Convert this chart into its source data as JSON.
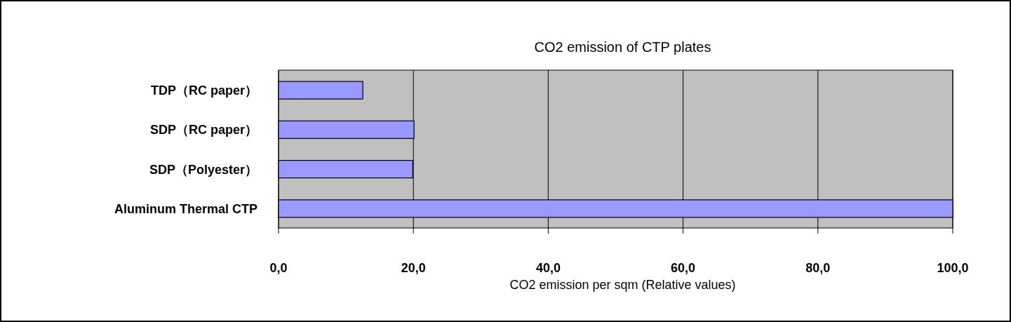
{
  "chart_data": {
    "type": "bar",
    "orientation": "horizontal",
    "title": "CO2 emission of CTP plates",
    "xlabel": "CO2 emission per sqm (Relative values)",
    "categories": [
      "TDP（RC paper）",
      "SDP（RC paper）",
      "SDP（Polyester）",
      "Aluminum Thermal CTP"
    ],
    "values": [
      12.5,
      20.1,
      19.9,
      100
    ],
    "color": "#9999ff",
    "xlim": [
      0,
      100
    ],
    "xticks": [
      {
        "value": 0,
        "label": "0,0"
      },
      {
        "value": 20,
        "label": "20,0"
      },
      {
        "value": 40,
        "label": "40,0"
      },
      {
        "value": 60,
        "label": "60,0"
      },
      {
        "value": 80,
        "label": "80,0"
      },
      {
        "value": 100,
        "label": "100,0"
      }
    ],
    "grid": "x"
  }
}
